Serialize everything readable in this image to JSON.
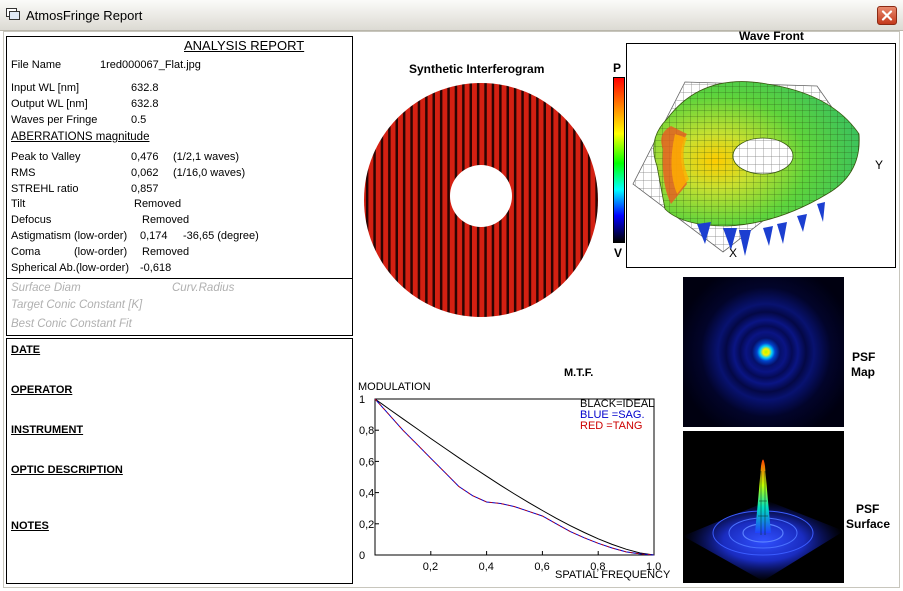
{
  "window": {
    "title": "AtmosFringe  Report"
  },
  "report": {
    "heading": "ANALYSIS  REPORT",
    "file_name_label": "File Name",
    "file_name_value": "1red000067_Flat.jpg",
    "input_wl_label": "Input  WL [nm]",
    "input_wl_value": "632.8",
    "output_wl_label": "Output WL [nm]",
    "output_wl_value": "632.8",
    "waves_label": "Waves per Fringe",
    "waves_value": "0.5",
    "aberr_heading": "ABERRATIONS magnitude",
    "ptv_label": "Peak to Valley",
    "ptv_value": "0,476",
    "ptv_waves": "(1/2,1 waves)",
    "rms_label": "RMS",
    "rms_value": "0,062",
    "rms_waves": "(1/16,0 waves)",
    "strehl_label": "STREHL ratio",
    "strehl_value": "0,857",
    "tilt_label": "Tilt",
    "tilt_value": "Removed",
    "defocus_label": "Defocus",
    "defocus_value": "Removed",
    "astig_label": "Astigmatism  (low-order)",
    "astig_value": "0,174",
    "astig_angle": "-36,65  (degree)",
    "coma_label": "Coma",
    "coma_order": "(low-order)",
    "coma_value": "Removed",
    "spherical_label": "Spherical Ab.(low-order)",
    "spherical_value": "-0,618",
    "surface_diam": "Surface Diam",
    "curv_radius": "Curv.Radius",
    "target_conic": "Target Conic Constant [K]",
    "best_conic": "Best Conic Constant Fit"
  },
  "info": {
    "date": "DATE",
    "operator": "OPERATOR",
    "instrument": "INSTRUMENT",
    "optic": "OPTIC DESCRIPTION",
    "notes": "NOTES"
  },
  "interferogram": {
    "title": "Synthetic Interferogram",
    "scale_top": "P",
    "scale_bottom": "V"
  },
  "wavefront": {
    "title": "Wave Front",
    "x_label": "X",
    "y_label": "Y"
  },
  "psf": {
    "map_line1": "PSF",
    "map_line2": "Map",
    "surface_line1": "PSF",
    "surface_line2": "Surface"
  },
  "chart_data": {
    "type": "line",
    "title": "M.T.F.",
    "ylabel": "MODULATION",
    "xlabel": "SPATIAL FREQUENCY",
    "xlim": [
      0,
      1
    ],
    "ylim": [
      0,
      1
    ],
    "xticks": [
      "0,2",
      "0,4",
      "0,6",
      "0,8",
      "1,0"
    ],
    "yticks": [
      "0",
      "0,2",
      "0,4",
      "0,6",
      "0,8",
      "1"
    ],
    "x": [
      0,
      0.05,
      0.1,
      0.15,
      0.2,
      0.25,
      0.3,
      0.35,
      0.4,
      0.45,
      0.5,
      0.55,
      0.6,
      0.65,
      0.7,
      0.75,
      0.8,
      0.85,
      0.9,
      0.95,
      1.0
    ],
    "series": [
      {
        "name": "BLACK=IDEAL",
        "color": "#000000",
        "values": [
          1,
          0.936,
          0.873,
          0.81,
          0.747,
          0.685,
          0.624,
          0.564,
          0.505,
          0.447,
          0.391,
          0.337,
          0.285,
          0.235,
          0.188,
          0.144,
          0.104,
          0.068,
          0.037,
          0.013,
          0
        ]
      },
      {
        "name": "BLUE  =SAG.",
        "color": "#0000cc",
        "values": [
          1,
          0.9,
          0.8,
          0.71,
          0.62,
          0.53,
          0.44,
          0.38,
          0.34,
          0.33,
          0.31,
          0.28,
          0.25,
          0.2,
          0.15,
          0.11,
          0.075,
          0.045,
          0.02,
          0.007,
          0
        ]
      },
      {
        "name": "RED   =TANG",
        "color": "#cc0000",
        "values": [
          1,
          0.9,
          0.8,
          0.71,
          0.62,
          0.53,
          0.44,
          0.38,
          0.34,
          0.33,
          0.31,
          0.28,
          0.25,
          0.2,
          0.15,
          0.11,
          0.075,
          0.045,
          0.02,
          0.007,
          0
        ]
      }
    ]
  }
}
